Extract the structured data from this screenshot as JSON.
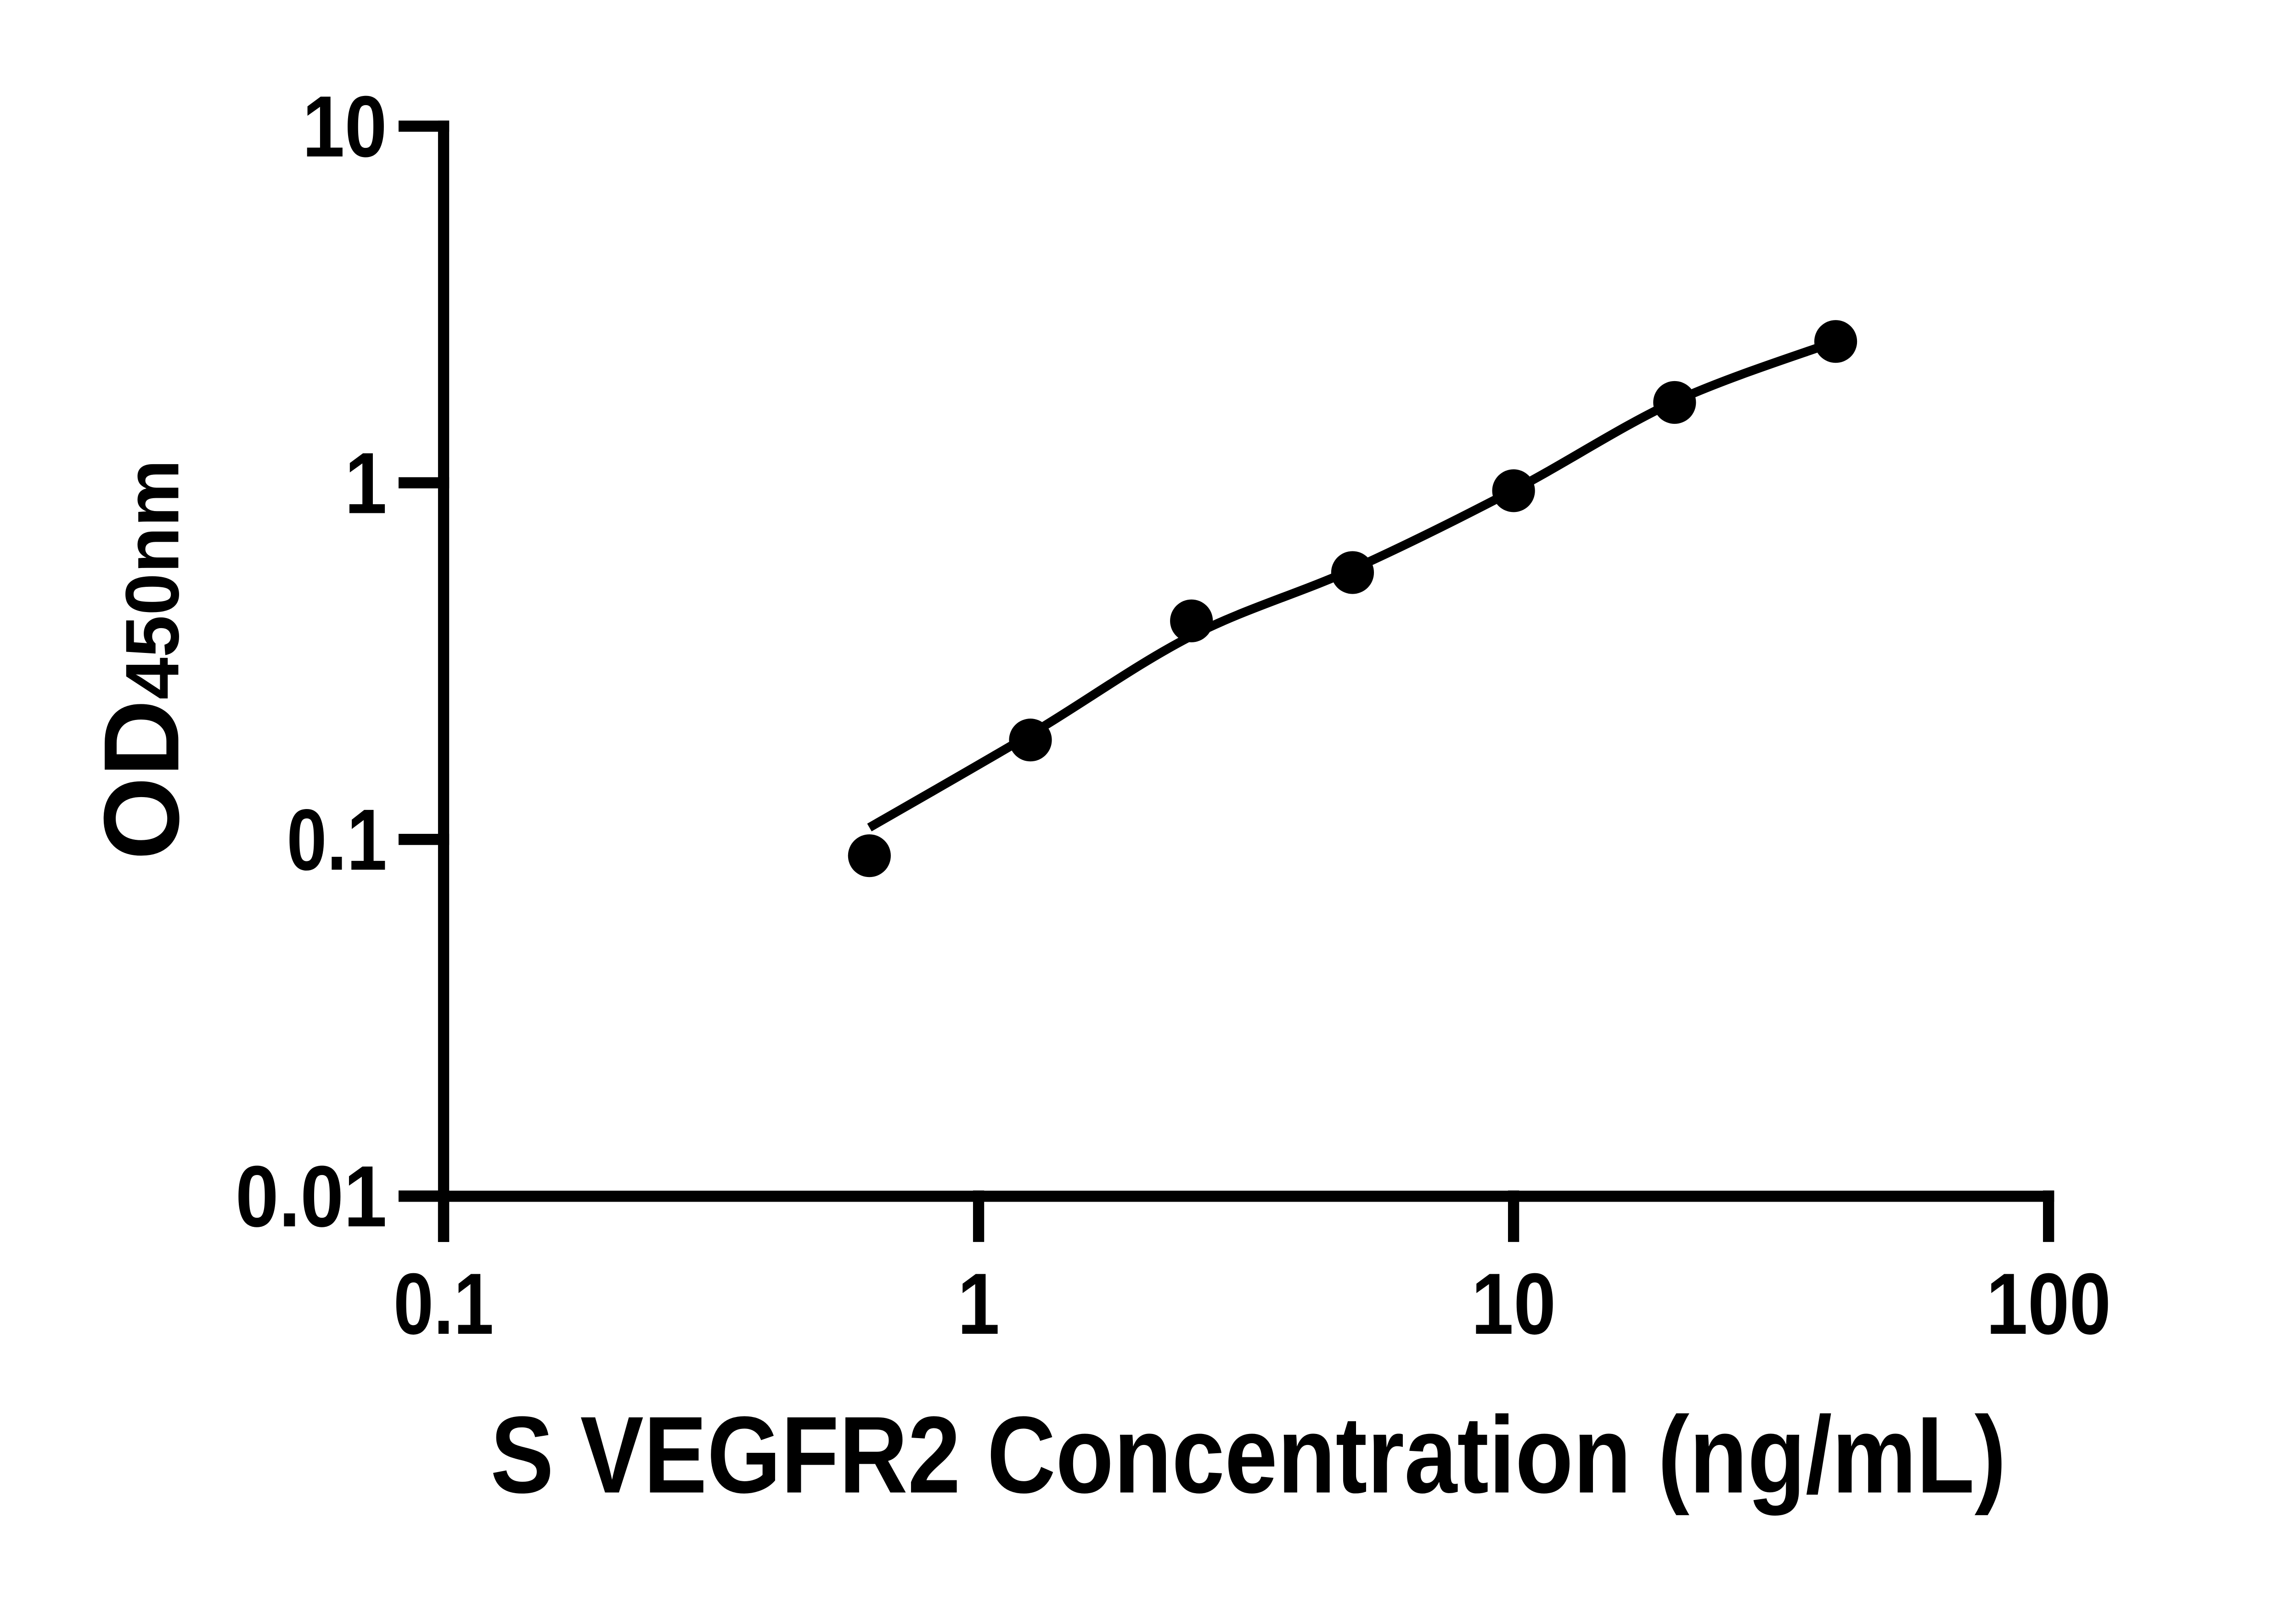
{
  "figure": {
    "background": "#ffffff",
    "ink": "#000000"
  },
  "chart": {
    "x_axis": {
      "title": "S VEGFR2 Concentration (ng/mL)",
      "scale": "log",
      "ticks": [
        "0.1",
        "1",
        "10",
        "100"
      ]
    },
    "y_axis": {
      "title_main": "OD",
      "title_sub": "450nm",
      "scale": "log",
      "ticks": [
        "10",
        "1",
        "0.1",
        "0.01"
      ]
    }
  },
  "chart_data": {
    "type": "scatter",
    "title": "",
    "xlabel": "S VEGFR2 Concentration (ng/mL)",
    "ylabel": "OD450nm",
    "x_scale": "log",
    "y_scale": "log",
    "xlim": [
      0.1,
      100
    ],
    "ylim": [
      0.01,
      10
    ],
    "x_ticks": [
      0.1,
      1,
      10,
      100
    ],
    "y_ticks": [
      10,
      1,
      0.1,
      0.01
    ],
    "grid": false,
    "legend": false,
    "marker_color": "#000000",
    "line_color": "#000000",
    "series": [
      {
        "x": [
          0.625,
          1.25,
          2.5,
          5,
          10,
          20,
          40
        ],
        "y": [
          0.09,
          0.19,
          0.41,
          0.56,
          0.95,
          1.68,
          2.49
        ]
      }
    ],
    "fit_curve": {
      "x": [
        0.625,
        1.25,
        2.5,
        5,
        10,
        20,
        40
      ],
      "y": [
        0.108,
        0.197,
        0.372,
        0.572,
        0.953,
        1.69,
        2.49
      ]
    }
  }
}
